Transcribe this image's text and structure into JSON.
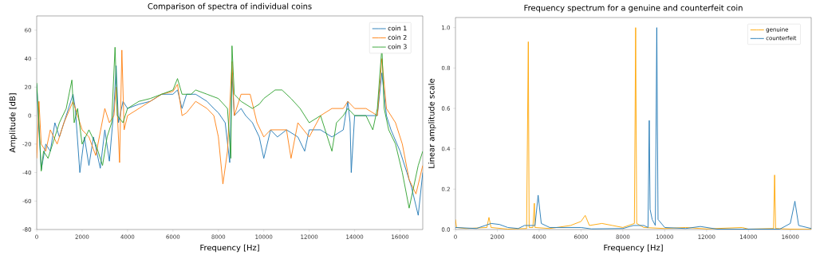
{
  "chart_data": [
    {
      "type": "line",
      "title": "Comparison of spectra of individual coins",
      "xlabel": "Frequency [Hz]",
      "ylabel": "Amplitude [dB]",
      "xlim": [
        0,
        17000
      ],
      "ylim": [
        -80,
        70
      ],
      "xticks": [
        0,
        2000,
        4000,
        6000,
        8000,
        10000,
        12000,
        14000,
        16000
      ],
      "yticks": [
        -80,
        -60,
        -40,
        -20,
        0,
        20,
        40,
        60
      ],
      "legend": "top right",
      "series": [
        {
          "name": "coin 1",
          "color": "#1f77b4",
          "x": [
            0,
            100,
            200,
            400,
            600,
            800,
            1000,
            1300,
            1600,
            1700,
            1900,
            2100,
            2300,
            2500,
            2800,
            3000,
            3200,
            3400,
            3500,
            3600,
            3800,
            4000,
            4500,
            5000,
            5500,
            6000,
            6200,
            6400,
            6600,
            7000,
            7500,
            7800,
            8000,
            8300,
            8500,
            8600,
            8700,
            9000,
            9200,
            9500,
            9800,
            10000,
            10300,
            10600,
            11000,
            11500,
            11800,
            12000,
            12500,
            13000,
            13500,
            13700,
            13800,
            13850,
            14000,
            14500,
            15000,
            15200,
            15400,
            15600,
            16000,
            16300,
            16500,
            16800,
            17000
          ],
          "values": [
            22,
            -10,
            -38,
            -20,
            -25,
            -5,
            -15,
            0,
            15,
            5,
            -40,
            -15,
            -35,
            -15,
            -37,
            -10,
            -32,
            5,
            35,
            -5,
            10,
            5,
            8,
            10,
            15,
            15,
            18,
            5,
            15,
            15,
            10,
            5,
            2,
            -5,
            -33,
            30,
            0,
            5,
            0,
            -5,
            -15,
            -30,
            -10,
            -15,
            -10,
            -15,
            -25,
            -10,
            -10,
            -15,
            -10,
            10,
            -5,
            -40,
            0,
            0,
            0,
            30,
            0,
            -10,
            -25,
            -40,
            -50,
            -70,
            -40
          ]
        },
        {
          "name": "coin 2",
          "color": "#ff7f0e",
          "x": [
            0,
            100,
            200,
            400,
            600,
            900,
            1200,
            1600,
            1800,
            2000,
            2300,
            2600,
            3000,
            3200,
            3400,
            3500,
            3650,
            3750,
            3850,
            4000,
            4500,
            5000,
            5500,
            6000,
            6200,
            6400,
            6600,
            7000,
            7500,
            7800,
            8000,
            8200,
            8400,
            8600,
            8700,
            9000,
            9400,
            9700,
            10000,
            10300,
            10600,
            11000,
            11200,
            11500,
            12000,
            12500,
            13000,
            13500,
            13700,
            14000,
            14500,
            15000,
            15200,
            15400,
            15800,
            16100,
            16400,
            16700,
            17000
          ],
          "values": [
            -30,
            10,
            -20,
            -25,
            -10,
            -20,
            -5,
            10,
            0,
            -10,
            -15,
            -28,
            5,
            -5,
            0,
            20,
            -33,
            46,
            -10,
            0,
            5,
            10,
            15,
            17,
            22,
            0,
            2,
            10,
            5,
            0,
            -15,
            -48,
            -25,
            38,
            0,
            15,
            15,
            -5,
            -15,
            -10,
            -10,
            -10,
            -30,
            -5,
            -15,
            0,
            5,
            5,
            10,
            5,
            5,
            0,
            40,
            5,
            -5,
            -20,
            -45,
            -55,
            -35
          ]
        },
        {
          "name": "coin 3",
          "color": "#2ca02c",
          "x": [
            0,
            100,
            200,
            300,
            500,
            800,
            1000,
            1300,
            1550,
            1650,
            1800,
            2000,
            2300,
            2600,
            2900,
            3100,
            3300,
            3450,
            3550,
            3800,
            4000,
            4500,
            5000,
            5500,
            6000,
            6200,
            6400,
            6800,
            7000,
            7500,
            8000,
            8400,
            8550,
            8600,
            8700,
            9000,
            9500,
            9800,
            10000,
            10500,
            10800,
            11200,
            11600,
            12000,
            12500,
            13000,
            13200,
            13500,
            13700,
            14000,
            14500,
            14800,
            15000,
            15200,
            15300,
            15500,
            15800,
            16100,
            16400,
            16800,
            17000
          ],
          "values": [
            23,
            -5,
            -39,
            -25,
            -30,
            -15,
            -5,
            5,
            25,
            -5,
            5,
            -20,
            -10,
            -20,
            -35,
            -15,
            -5,
            48,
            0,
            -5,
            5,
            10,
            12,
            15,
            18,
            26,
            15,
            15,
            18,
            15,
            12,
            5,
            -30,
            49,
            15,
            10,
            5,
            8,
            12,
            18,
            18,
            12,
            5,
            -5,
            0,
            -25,
            -5,
            0,
            5,
            0,
            0,
            -10,
            5,
            48,
            5,
            -10,
            -20,
            -40,
            -65,
            -35,
            -25
          ]
        }
      ]
    },
    {
      "type": "line",
      "title": "Frequency spectrum for a genuine and counterfeit coin",
      "xlabel": "Frequency [Hz]",
      "ylabel": "Linear amplitude scale",
      "xlim": [
        0,
        17000
      ],
      "ylim": [
        0,
        1.05
      ],
      "xticks": [
        0,
        2000,
        4000,
        6000,
        8000,
        10000,
        12000,
        14000,
        16000
      ],
      "yticks": [
        {
          "value": 0,
          "label": "0.0"
        },
        0.2,
        0.4,
        0.6,
        0.8,
        {
          "value": 1,
          "label": "1.0"
        }
      ],
      "legend": "top right",
      "series": [
        {
          "name": "genuine",
          "color": "#ffa500",
          "x": [
            0,
            50,
            500,
            1500,
            1600,
            1700,
            2500,
            3400,
            3480,
            3520,
            3700,
            3770,
            3800,
            4500,
            5500,
            6000,
            6200,
            6400,
            7000,
            7500,
            8000,
            8550,
            8610,
            8660,
            9000,
            10000,
            11000,
            12000,
            13700,
            14000,
            15200,
            15250,
            15300,
            16000,
            17000
          ],
          "values": [
            0.05,
            0.01,
            0.005,
            0.01,
            0.06,
            0.01,
            0.002,
            0.005,
            0.93,
            0.01,
            0.01,
            0.13,
            0.01,
            0.005,
            0.02,
            0.04,
            0.07,
            0.02,
            0.03,
            0.02,
            0.01,
            0.03,
            1.0,
            0.03,
            0.01,
            0.005,
            0.01,
            0.003,
            0.01,
            0.002,
            0.005,
            0.27,
            0.005,
            0.002,
            0.001
          ]
        },
        {
          "name": "counterfeit",
          "color": "#1f77b4",
          "x": [
            0,
            1000,
            1700,
            2100,
            2500,
            3000,
            3300,
            3800,
            3950,
            4100,
            4500,
            6000,
            6500,
            8000,
            8500,
            9000,
            9200,
            9260,
            9300,
            9400,
            9550,
            9620,
            9680,
            10000,
            11000,
            11700,
            12500,
            15500,
            16000,
            16220,
            16400,
            17000
          ],
          "values": [
            0.01,
            0.005,
            0.03,
            0.025,
            0.01,
            0.005,
            0.02,
            0.02,
            0.17,
            0.03,
            0.01,
            0.01,
            0.003,
            0.005,
            0.02,
            0.02,
            0.01,
            0.54,
            0.1,
            0.05,
            0.02,
            1.0,
            0.05,
            0.01,
            0.005,
            0.015,
            0.002,
            0.002,
            0.03,
            0.14,
            0.02,
            0.005
          ]
        }
      ]
    }
  ]
}
